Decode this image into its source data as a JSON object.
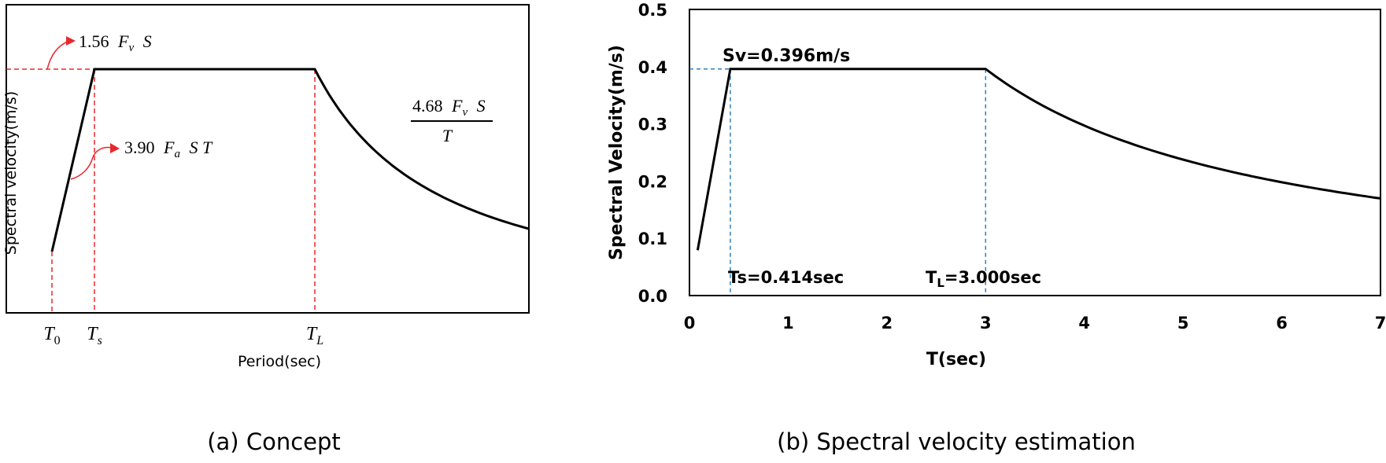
{
  "charts": [
    {
      "id": "concept",
      "caption": "(a) Concept",
      "chart_data": {
        "type": "line",
        "title": "",
        "xlabel": "Period(sec)",
        "ylabel": "Spectral velocity(m/s)",
        "x_ticks": [
          {
            "base": "T",
            "sub": "0"
          },
          {
            "base": "T",
            "sub": "s"
          },
          {
            "base": "T",
            "sub": "L"
          }
        ],
        "annotations": {
          "plateau": {
            "num": "1.56",
            "var": "F",
            "sub": "v",
            "tail": "S"
          },
          "rise": {
            "num": "3.90",
            "var": "F",
            "sub": "a",
            "tail": "S T"
          },
          "decay": {
            "num": "4.68",
            "var": "F",
            "sub": "v",
            "tail": "S",
            "denom": "T"
          }
        },
        "accent_color": "#e8282c",
        "line_color": "#000000"
      }
    },
    {
      "id": "estimation",
      "caption": "(b) Spectral velocity estimation",
      "chart_data": {
        "type": "line",
        "title": "",
        "xlabel": "T(sec)",
        "ylabel": "Spectral Velocity(m/s)",
        "xlim": [
          0,
          7
        ],
        "ylim": [
          0,
          0.5
        ],
        "x_tick_labels": [
          "0",
          "1",
          "2",
          "3",
          "4",
          "5",
          "6",
          "7"
        ],
        "y_tick_labels": [
          "0.0",
          "0.1",
          "0.2",
          "0.3",
          "0.4",
          "0.5"
        ],
        "series": [
          {
            "sv": 0.396,
            "t0": 0.0828,
            "ts": 0.414,
            "tl": 3.0,
            "t_end": 7.0,
            "points": [
              [
                0.083,
                0.08
              ],
              [
                0.414,
                0.396
              ],
              [
                3.0,
                0.396
              ],
              [
                3.5,
                0.34
              ],
              [
                4.0,
                0.297
              ],
              [
                5.0,
                0.238
              ],
              [
                6.0,
                0.198
              ],
              [
                7.0,
                0.17
              ]
            ]
          }
        ],
        "annotations": {
          "sv": "Sv=0.396m/s",
          "ts": "Ts=0.414sec",
          "tl_base": "T",
          "tl_sub": "L",
          "tl_rest": "=3.000sec"
        },
        "guide_color": "#2e7fc1",
        "line_color": "#000000"
      }
    }
  ]
}
